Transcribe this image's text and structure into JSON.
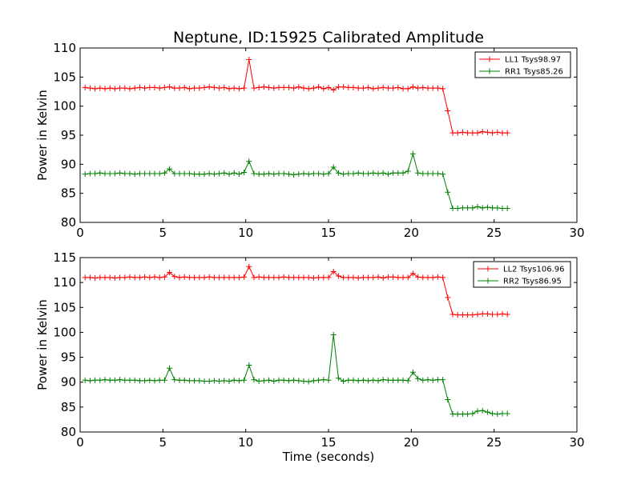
{
  "title": "Neptune, ID:15925 Calibrated Amplitude",
  "chart_data": [
    {
      "type": "line",
      "title": "Neptune, ID:15925 Calibrated Amplitude",
      "xlabel": "",
      "ylabel": "Power in Kelvin",
      "xlim": [
        0,
        30
      ],
      "ylim": [
        80,
        110
      ],
      "xticks": [
        "0",
        "5",
        "10",
        "15",
        "20",
        "25",
        "30"
      ],
      "yticks": [
        "80",
        "85",
        "90",
        "95",
        "100",
        "105",
        "110"
      ],
      "grid": false,
      "legend_position": "top-right",
      "x": [
        0.3,
        0.6,
        0.9,
        1.2,
        1.5,
        1.8,
        2.1,
        2.4,
        2.7,
        3.0,
        3.3,
        3.6,
        3.9,
        4.2,
        4.5,
        4.8,
        5.1,
        5.4,
        5.7,
        6.0,
        6.3,
        6.6,
        6.9,
        7.2,
        7.5,
        7.8,
        8.1,
        8.4,
        8.7,
        9.0,
        9.3,
        9.6,
        9.9,
        10.2,
        10.5,
        10.8,
        11.1,
        11.4,
        11.7,
        12.0,
        12.3,
        12.6,
        12.9,
        13.2,
        13.5,
        13.8,
        14.1,
        14.4,
        14.7,
        15.0,
        15.3,
        15.6,
        15.9,
        16.2,
        16.5,
        16.8,
        17.1,
        17.4,
        17.7,
        18.0,
        18.3,
        18.6,
        18.9,
        19.2,
        19.5,
        19.8,
        20.1,
        20.4,
        20.7,
        21.0,
        21.3,
        21.6,
        21.9,
        22.2,
        22.5,
        22.8,
        23.1,
        23.4,
        23.7,
        24.0,
        24.3,
        24.6,
        24.9,
        25.2,
        25.5,
        25.8
      ],
      "series": [
        {
          "name": "LL1 Tsys98.97",
          "color": "#ff0000",
          "values": [
            103.2,
            103.1,
            103.0,
            103.1,
            103.0,
            103.1,
            103.0,
            103.1,
            103.1,
            103.0,
            103.1,
            103.2,
            103.1,
            103.2,
            103.2,
            103.1,
            103.2,
            103.3,
            103.1,
            103.1,
            103.2,
            103.0,
            103.1,
            103.1,
            103.2,
            103.3,
            103.2,
            103.1,
            103.2,
            103.0,
            103.1,
            103.0,
            103.1,
            108.0,
            103.1,
            103.2,
            103.3,
            103.2,
            103.1,
            103.2,
            103.2,
            103.2,
            103.1,
            103.3,
            103.1,
            103.0,
            103.1,
            103.3,
            103.0,
            103.2,
            102.8,
            103.3,
            103.3,
            103.2,
            103.2,
            103.1,
            103.1,
            103.2,
            103.0,
            103.1,
            103.2,
            103.1,
            103.1,
            103.2,
            103.0,
            103.0,
            103.3,
            103.1,
            103.2,
            103.1,
            103.1,
            103.1,
            103.0,
            99.2,
            95.4,
            95.4,
            95.5,
            95.4,
            95.4,
            95.4,
            95.6,
            95.5,
            95.4,
            95.5,
            95.4,
            95.4
          ]
        },
        {
          "name": "RR1 Tsys85.26",
          "color": "#008000",
          "values": [
            88.3,
            88.4,
            88.4,
            88.5,
            88.4,
            88.4,
            88.4,
            88.5,
            88.4,
            88.4,
            88.3,
            88.4,
            88.4,
            88.4,
            88.4,
            88.4,
            88.5,
            89.2,
            88.4,
            88.4,
            88.4,
            88.4,
            88.3,
            88.3,
            88.3,
            88.4,
            88.3,
            88.4,
            88.5,
            88.3,
            88.5,
            88.3,
            88.6,
            90.5,
            88.4,
            88.3,
            88.3,
            88.4,
            88.3,
            88.4,
            88.4,
            88.3,
            88.2,
            88.3,
            88.4,
            88.3,
            88.4,
            88.4,
            88.3,
            88.4,
            89.5,
            88.5,
            88.3,
            88.4,
            88.4,
            88.5,
            88.4,
            88.4,
            88.5,
            88.4,
            88.5,
            88.3,
            88.5,
            88.5,
            88.5,
            88.8,
            91.8,
            88.5,
            88.4,
            88.4,
            88.4,
            88.4,
            88.3,
            85.2,
            82.4,
            82.4,
            82.5,
            82.5,
            82.5,
            82.7,
            82.5,
            82.6,
            82.5,
            82.5,
            82.4,
            82.4
          ]
        }
      ]
    },
    {
      "type": "line",
      "title": "",
      "xlabel": "Time (seconds)",
      "ylabel": "Power in Kelvin",
      "xlim": [
        0,
        30
      ],
      "ylim": [
        80,
        115
      ],
      "xticks": [
        "0",
        "5",
        "10",
        "15",
        "20",
        "25",
        "30"
      ],
      "yticks": [
        "80",
        "85",
        "90",
        "95",
        "100",
        "105",
        "110",
        "115"
      ],
      "grid": false,
      "legend_position": "top-right",
      "x": [
        0.3,
        0.6,
        0.9,
        1.2,
        1.5,
        1.8,
        2.1,
        2.4,
        2.7,
        3.0,
        3.3,
        3.6,
        3.9,
        4.2,
        4.5,
        4.8,
        5.1,
        5.4,
        5.7,
        6.0,
        6.3,
        6.6,
        6.9,
        7.2,
        7.5,
        7.8,
        8.1,
        8.4,
        8.7,
        9.0,
        9.3,
        9.6,
        9.9,
        10.2,
        10.5,
        10.8,
        11.1,
        11.4,
        11.7,
        12.0,
        12.3,
        12.6,
        12.9,
        13.2,
        13.5,
        13.8,
        14.1,
        14.4,
        14.7,
        15.0,
        15.3,
        15.6,
        15.9,
        16.2,
        16.5,
        16.8,
        17.1,
        17.4,
        17.7,
        18.0,
        18.3,
        18.6,
        18.9,
        19.2,
        19.5,
        19.8,
        20.1,
        20.4,
        20.7,
        21.0,
        21.3,
        21.6,
        21.9,
        22.2,
        22.5,
        22.8,
        23.1,
        23.4,
        23.7,
        24.0,
        24.3,
        24.6,
        24.9,
        25.2,
        25.5,
        25.8
      ],
      "series": [
        {
          "name": "LL2 Tsys106.96",
          "color": "#ff0000",
          "values": [
            111.0,
            111.0,
            110.9,
            111.0,
            111.0,
            111.0,
            110.9,
            111.0,
            111.0,
            111.1,
            111.0,
            111.0,
            111.1,
            111.0,
            111.1,
            111.0,
            111.1,
            112.0,
            111.2,
            111.0,
            111.1,
            111.0,
            111.0,
            111.0,
            111.0,
            111.1,
            111.0,
            111.0,
            111.0,
            111.0,
            111.0,
            111.0,
            111.1,
            113.2,
            111.0,
            111.1,
            111.0,
            111.0,
            111.0,
            111.0,
            111.1,
            111.0,
            111.0,
            111.0,
            111.0,
            111.0,
            110.9,
            111.0,
            111.0,
            111.0,
            112.2,
            111.3,
            111.0,
            111.0,
            111.0,
            110.9,
            111.0,
            111.0,
            111.0,
            111.1,
            110.9,
            111.1,
            111.1,
            111.0,
            111.0,
            111.0,
            111.8,
            111.1,
            111.0,
            111.0,
            111.0,
            111.1,
            111.0,
            107.0,
            103.6,
            103.5,
            103.5,
            103.5,
            103.5,
            103.6,
            103.7,
            103.7,
            103.6,
            103.6,
            103.7,
            103.6
          ]
        },
        {
          "name": "RR2 Tsys86.95",
          "color": "#008000",
          "values": [
            90.4,
            90.3,
            90.4,
            90.4,
            90.5,
            90.4,
            90.4,
            90.5,
            90.4,
            90.4,
            90.4,
            90.3,
            90.3,
            90.4,
            90.3,
            90.4,
            90.4,
            92.8,
            90.5,
            90.4,
            90.4,
            90.3,
            90.3,
            90.3,
            90.2,
            90.2,
            90.3,
            90.2,
            90.3,
            90.2,
            90.4,
            90.3,
            90.4,
            93.4,
            90.5,
            90.2,
            90.3,
            90.4,
            90.2,
            90.4,
            90.4,
            90.3,
            90.4,
            90.3,
            90.2,
            90.1,
            90.3,
            90.4,
            90.5,
            90.4,
            99.5,
            90.8,
            90.2,
            90.4,
            90.4,
            90.3,
            90.4,
            90.3,
            90.4,
            90.3,
            90.5,
            90.4,
            90.4,
            90.4,
            90.4,
            90.3,
            92.0,
            90.7,
            90.4,
            90.5,
            90.4,
            90.5,
            90.5,
            86.5,
            83.6,
            83.6,
            83.6,
            83.6,
            83.7,
            84.2,
            84.3,
            84.0,
            83.7,
            83.6,
            83.7,
            83.7
          ]
        }
      ]
    }
  ]
}
